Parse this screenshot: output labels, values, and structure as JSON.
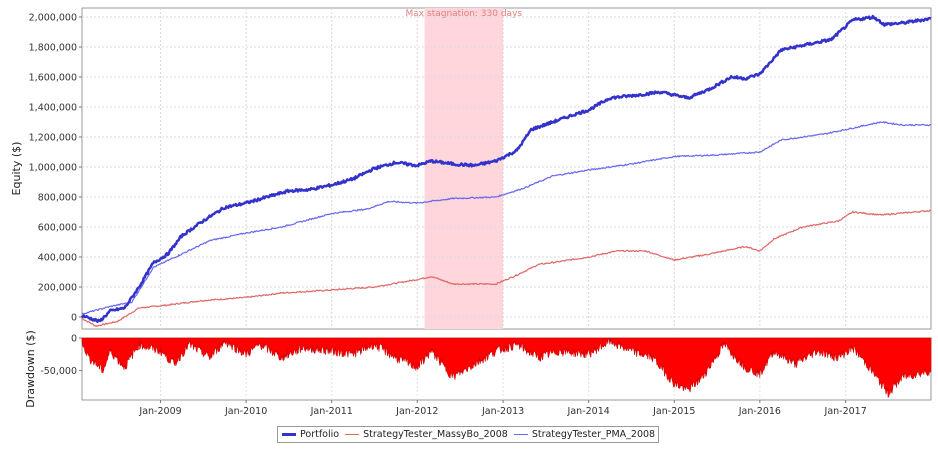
{
  "chart_data": [
    {
      "type": "line",
      "ylabel": "Equity ($)",
      "ylim": [
        -80000,
        2060000
      ],
      "yticks": [
        0,
        200000,
        400000,
        600000,
        800000,
        1000000,
        1200000,
        1400000,
        1600000,
        1800000,
        2000000
      ],
      "ytick_labels": [
        "0",
        "200,000",
        "400,000",
        "600,000",
        "800,000",
        "1,000,000",
        "1,200,000",
        "1,400,000",
        "1,600,000",
        "1,800,000",
        "2,000,000"
      ],
      "x_range": [
        "2008-02-01",
        "2017-12-31"
      ],
      "grid": true,
      "annotation": {
        "label": "Max stagnation: 330 days",
        "start": "2012-02-01",
        "end": "2013-01-01",
        "color": "#ffd6dc"
      },
      "series": [
        {
          "name": "Portfolio",
          "color": "#3333cc",
          "width": 2.5,
          "points": [
            [
              "2008-02-01",
              10000
            ],
            [
              "2008-04-15",
              -30000
            ],
            [
              "2008-06-01",
              40000
            ],
            [
              "2008-08-01",
              60000
            ],
            [
              "2008-10-01",
              200000
            ],
            [
              "2008-12-01",
              360000
            ],
            [
              "2009-02-01",
              420000
            ],
            [
              "2009-04-01",
              540000
            ],
            [
              "2009-07-01",
              640000
            ],
            [
              "2009-10-01",
              730000
            ],
            [
              "2010-01-01",
              760000
            ],
            [
              "2010-04-01",
              800000
            ],
            [
              "2010-07-01",
              840000
            ],
            [
              "2010-10-01",
              850000
            ],
            [
              "2011-01-01",
              880000
            ],
            [
              "2011-04-01",
              920000
            ],
            [
              "2011-07-01",
              990000
            ],
            [
              "2011-10-01",
              1030000
            ],
            [
              "2012-01-01",
              1010000
            ],
            [
              "2012-03-01",
              1040000
            ],
            [
              "2012-06-01",
              1020000
            ],
            [
              "2012-09-01",
              1010000
            ],
            [
              "2012-12-01",
              1040000
            ],
            [
              "2013-03-01",
              1110000
            ],
            [
              "2013-05-01",
              1250000
            ],
            [
              "2013-08-01",
              1300000
            ],
            [
              "2013-11-01",
              1350000
            ],
            [
              "2014-01-01",
              1380000
            ],
            [
              "2014-04-01",
              1460000
            ],
            [
              "2014-08-01",
              1480000
            ],
            [
              "2014-11-01",
              1500000
            ],
            [
              "2015-01-01",
              1480000
            ],
            [
              "2015-03-01",
              1460000
            ],
            [
              "2015-06-01",
              1520000
            ],
            [
              "2015-09-01",
              1600000
            ],
            [
              "2015-11-01",
              1590000
            ],
            [
              "2016-01-01",
              1620000
            ],
            [
              "2016-04-01",
              1780000
            ],
            [
              "2016-07-01",
              1810000
            ],
            [
              "2016-11-01",
              1850000
            ],
            [
              "2017-02-01",
              1980000
            ],
            [
              "2017-05-01",
              2000000
            ],
            [
              "2017-06-15",
              1950000
            ],
            [
              "2017-09-01",
              1960000
            ],
            [
              "2017-12-31",
              1990000
            ]
          ]
        },
        {
          "name": "StrategyTester_MassyBo_2008",
          "color": "#e06666",
          "width": 1.2,
          "points": [
            [
              "2008-02-01",
              -10000
            ],
            [
              "2008-04-01",
              -60000
            ],
            [
              "2008-07-01",
              -30000
            ],
            [
              "2008-10-01",
              60000
            ],
            [
              "2009-02-01",
              80000
            ],
            [
              "2009-07-01",
              110000
            ],
            [
              "2010-01-01",
              130000
            ],
            [
              "2010-06-01",
              160000
            ],
            [
              "2011-01-01",
              180000
            ],
            [
              "2011-07-01",
              200000
            ],
            [
              "2012-01-01",
              250000
            ],
            [
              "2012-03-01",
              270000
            ],
            [
              "2012-06-01",
              220000
            ],
            [
              "2012-12-01",
              220000
            ],
            [
              "2013-03-01",
              280000
            ],
            [
              "2013-06-01",
              350000
            ],
            [
              "2013-09-01",
              370000
            ],
            [
              "2014-01-01",
              400000
            ],
            [
              "2014-05-01",
              440000
            ],
            [
              "2014-09-01",
              440000
            ],
            [
              "2015-01-01",
              380000
            ],
            [
              "2015-06-01",
              420000
            ],
            [
              "2015-11-01",
              470000
            ],
            [
              "2016-01-01",
              440000
            ],
            [
              "2016-03-01",
              520000
            ],
            [
              "2016-07-01",
              600000
            ],
            [
              "2016-12-01",
              640000
            ],
            [
              "2017-02-01",
              700000
            ],
            [
              "2017-06-01",
              680000
            ],
            [
              "2017-12-31",
              710000
            ]
          ]
        },
        {
          "name": "StrategyTester_PMA_2008",
          "color": "#6666ee",
          "width": 1.2,
          "points": [
            [
              "2008-02-01",
              20000
            ],
            [
              "2008-06-01",
              70000
            ],
            [
              "2008-09-01",
              100000
            ],
            [
              "2008-12-01",
              330000
            ],
            [
              "2009-04-01",
              420000
            ],
            [
              "2009-08-01",
              510000
            ],
            [
              "2010-01-01",
              560000
            ],
            [
              "2010-06-01",
              600000
            ],
            [
              "2011-01-01",
              690000
            ],
            [
              "2011-06-01",
              720000
            ],
            [
              "2011-09-01",
              770000
            ],
            [
              "2012-01-01",
              760000
            ],
            [
              "2012-06-01",
              790000
            ],
            [
              "2012-12-01",
              800000
            ],
            [
              "2013-04-01",
              860000
            ],
            [
              "2013-08-01",
              940000
            ],
            [
              "2014-01-01",
              980000
            ],
            [
              "2014-07-01",
              1020000
            ],
            [
              "2015-01-01",
              1070000
            ],
            [
              "2015-07-01",
              1080000
            ],
            [
              "2016-01-01",
              1100000
            ],
            [
              "2016-04-01",
              1180000
            ],
            [
              "2016-10-01",
              1220000
            ],
            [
              "2017-02-01",
              1260000
            ],
            [
              "2017-06-01",
              1300000
            ],
            [
              "2017-09-01",
              1280000
            ],
            [
              "2017-12-31",
              1280000
            ]
          ]
        }
      ]
    },
    {
      "type": "area",
      "ylabel": "Drawdown ($)",
      "ylim": [
        -95000,
        0
      ],
      "yticks": [
        0,
        -50000
      ],
      "ytick_labels": [
        "0",
        "-50,000"
      ],
      "color": "#ff0000",
      "x_range": [
        "2008-02-01",
        "2017-12-31"
      ],
      "xticks": [
        "2009-01-01",
        "2010-01-01",
        "2011-01-01",
        "2012-01-01",
        "2013-01-01",
        "2014-01-01",
        "2015-01-01",
        "2016-01-01",
        "2017-01-01"
      ],
      "xtick_labels": [
        "Jan-2009",
        "Jan-2010",
        "Jan-2011",
        "Jan-2012",
        "Jan-2013",
        "Jan-2014",
        "Jan-2015",
        "Jan-2016",
        "Jan-2017"
      ],
      "series": [
        {
          "name": "Drawdown",
          "points": [
            [
              "2008-02-01",
              -5000
            ],
            [
              "2008-03-01",
              -30000
            ],
            [
              "2008-05-01",
              -50000
            ],
            [
              "2008-06-01",
              -20000
            ],
            [
              "2008-08-01",
              -45000
            ],
            [
              "2008-10-01",
              -10000
            ],
            [
              "2009-01-01",
              -20000
            ],
            [
              "2009-03-01",
              -40000
            ],
            [
              "2009-05-01",
              -10000
            ],
            [
              "2009-08-01",
              -30000
            ],
            [
              "2009-10-01",
              -5000
            ],
            [
              "2010-01-01",
              -25000
            ],
            [
              "2010-03-01",
              -10000
            ],
            [
              "2010-06-01",
              -30000
            ],
            [
              "2010-09-01",
              -15000
            ],
            [
              "2011-01-01",
              -20000
            ],
            [
              "2011-04-01",
              -25000
            ],
            [
              "2011-07-01",
              -10000
            ],
            [
              "2011-10-01",
              -30000
            ],
            [
              "2012-01-01",
              -45000
            ],
            [
              "2012-03-01",
              -20000
            ],
            [
              "2012-06-01",
              -60000
            ],
            [
              "2012-09-01",
              -40000
            ],
            [
              "2012-12-01",
              -20000
            ],
            [
              "2013-03-01",
              -10000
            ],
            [
              "2013-06-01",
              -30000
            ],
            [
              "2013-09-01",
              -20000
            ],
            [
              "2014-01-01",
              -25000
            ],
            [
              "2014-04-01",
              -5000
            ],
            [
              "2014-07-01",
              -20000
            ],
            [
              "2014-10-01",
              -30000
            ],
            [
              "2015-01-01",
              -70000
            ],
            [
              "2015-03-01",
              -80000
            ],
            [
              "2015-05-01",
              -60000
            ],
            [
              "2015-08-01",
              -10000
            ],
            [
              "2015-11-01",
              -45000
            ],
            [
              "2016-01-01",
              -55000
            ],
            [
              "2016-03-01",
              -20000
            ],
            [
              "2016-06-01",
              -40000
            ],
            [
              "2016-09-01",
              -20000
            ],
            [
              "2016-12-01",
              -30000
            ],
            [
              "2017-02-01",
              -15000
            ],
            [
              "2017-04-01",
              -40000
            ],
            [
              "2017-07-01",
              -85000
            ],
            [
              "2017-09-01",
              -60000
            ],
            [
              "2017-12-31",
              -50000
            ]
          ]
        }
      ]
    }
  ],
  "legend": [
    {
      "label": "Portfolio",
      "color": "#3333cc"
    },
    {
      "label": "StrategyTester_MassyBo_2008",
      "color": "#e06666"
    },
    {
      "label": "StrategyTester_PMA_2008",
      "color": "#6666ee"
    }
  ]
}
